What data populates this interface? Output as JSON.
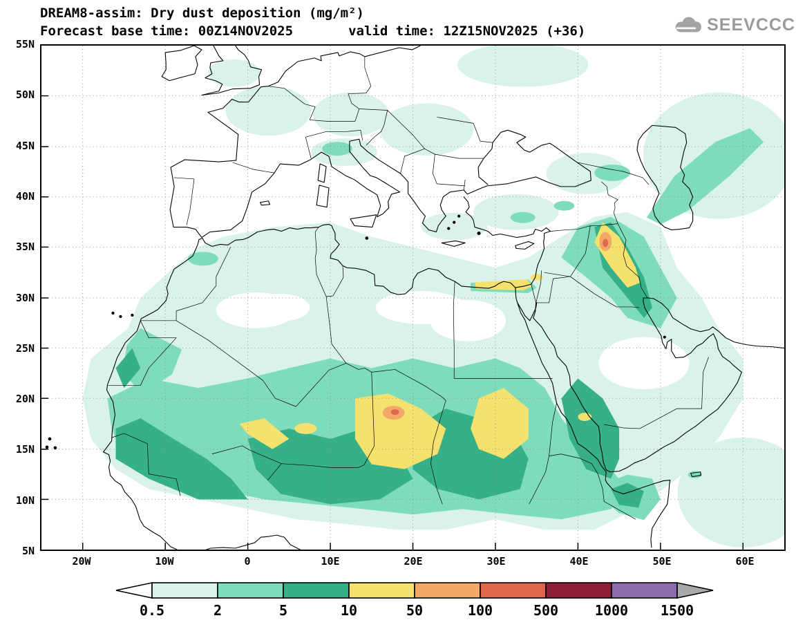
{
  "header": {
    "line1": "DREAM8-assim: Dry dust deposition (mg/m²)",
    "line2": "Forecast base time: 00Z14NOV2025       valid time: 12Z15NOV2025 (+36)"
  },
  "branding": {
    "logo_text": "SEEVCCC"
  },
  "axes": {
    "lat_labels": [
      "55N",
      "50N",
      "45N",
      "40N",
      "35N",
      "30N",
      "25N",
      "20N",
      "15N",
      "10N",
      "5N"
    ],
    "lon_labels": [
      "20W",
      "10W",
      "0",
      "10E",
      "20E",
      "30E",
      "40E",
      "50E",
      "60E"
    ]
  },
  "legend": {
    "tick_labels": [
      "0.5",
      "2",
      "5",
      "10",
      "50",
      "100",
      "500",
      "1000",
      "1500"
    ],
    "colors": [
      "#ffffff",
      "#daf2ec",
      "#7fdcba",
      "#36b088",
      "#f5e26e",
      "#f3a768",
      "#de694e",
      "#8e1f36",
      "#8c6cad",
      "#a9a9a9"
    ]
  },
  "chart_data": {
    "type": "filled_contour_map",
    "model": "DREAM8-assim",
    "variable": "Dry dust deposition",
    "units": "mg/m²",
    "forecast_base_time": "00Z14NOV2025",
    "valid_time": "12Z15NOV2025",
    "lead": "+36",
    "contour_levels": [
      0.5,
      2,
      5,
      10,
      50,
      100,
      500,
      1000,
      1500
    ],
    "lat_ticks": [
      "55N",
      "50N",
      "45N",
      "40N",
      "35N",
      "30N",
      "25N",
      "20N",
      "15N",
      "10N",
      "5N"
    ],
    "lon_ticks": [
      "20W",
      "10W",
      "0",
      "10E",
      "20E",
      "30E",
      "40E",
      "50E",
      "60E"
    ]
  }
}
